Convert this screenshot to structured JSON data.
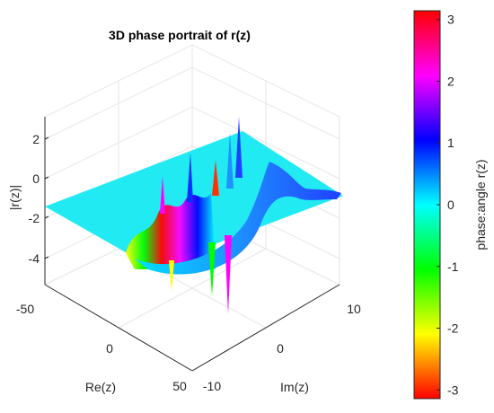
{
  "chart_data": {
    "type": "surface",
    "title": "3D phase portrait of r(z)",
    "xlabel": "Re(z)",
    "ylabel": "Im(z)",
    "zlabel": "|r(z)|",
    "xlim": [
      -50,
      50
    ],
    "ylim": [
      -10,
      10
    ],
    "zlim": [
      -5,
      3
    ],
    "x_ticks": [
      "-50",
      "0",
      "50"
    ],
    "y_ticks": [
      "-10",
      "0",
      "10"
    ],
    "z_ticks": [
      "2",
      "0",
      "-2",
      "-4"
    ],
    "grid": true,
    "colormap": "hsv",
    "colorbar": {
      "label": "phase:angle r(z)",
      "range": [
        -3.1416,
        3.1416
      ],
      "ticks": [
        "3",
        "2",
        "1",
        "0",
        "-1",
        "-2",
        "-3"
      ],
      "tick_values": [
        3,
        2,
        1,
        0,
        -1,
        -2,
        -3
      ],
      "stops": [
        "#ff0000",
        "#ff00ff",
        "#0000ff",
        "#00ffff",
        "#00ff00",
        "#ffff00",
        "#ff0000"
      ]
    },
    "plane_color": "#22eaf2",
    "plane_level": -1.3
  }
}
